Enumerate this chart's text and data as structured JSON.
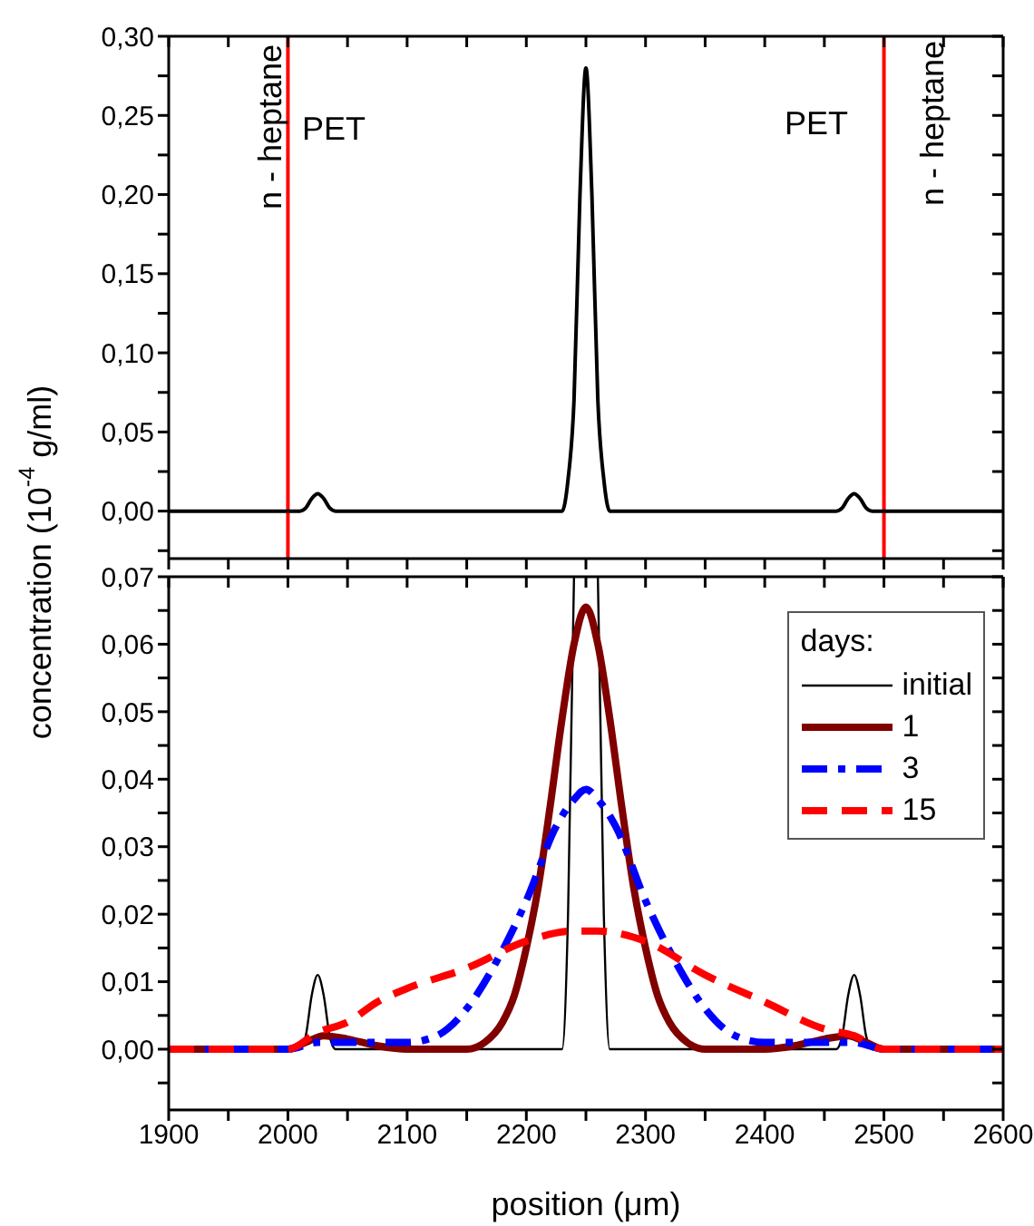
{
  "chart_data": [
    {
      "type": "line",
      "xlim": [
        1900,
        2600
      ],
      "xticks": [
        {
          "value": 1900,
          "label": null
        },
        {
          "value": 1950,
          "label": null
        },
        {
          "value": 2000,
          "label": null
        },
        {
          "value": 2050,
          "label": null
        },
        {
          "value": 2100,
          "label": null
        },
        {
          "value": 2150,
          "label": null
        },
        {
          "value": 2200,
          "label": null
        },
        {
          "value": 2250,
          "label": null
        },
        {
          "value": 2300,
          "label": null
        },
        {
          "value": 2350,
          "label": null
        },
        {
          "value": 2400,
          "label": null
        },
        {
          "value": 2450,
          "label": null
        },
        {
          "value": 2500,
          "label": null
        },
        {
          "value": 2550,
          "label": null
        },
        {
          "value": 2600,
          "label": null
        }
      ],
      "ylim": [
        -0.03,
        0.3
      ],
      "yticks": [
        {
          "value": -0.025,
          "label": null
        },
        {
          "value": 0,
          "label": "0,00"
        },
        {
          "value": 0.025,
          "label": null
        },
        {
          "value": 0.05,
          "label": "0,05"
        },
        {
          "value": 0.075,
          "label": null
        },
        {
          "value": 0.1,
          "label": "0,10"
        },
        {
          "value": 0.125,
          "label": null
        },
        {
          "value": 0.15,
          "label": "0,15"
        },
        {
          "value": 0.175,
          "label": null
        },
        {
          "value": 0.2,
          "label": "0,20"
        },
        {
          "value": 0.225,
          "label": null
        },
        {
          "value": 0.25,
          "label": "0,25"
        },
        {
          "value": 0.275,
          "label": null
        },
        {
          "value": 0.3,
          "label": "0,30"
        }
      ],
      "tick_labels": "y",
      "legend": false,
      "ylabel": "concentration (10$^{-4}$ g/ml)",
      "series": [
        {
          "color": "#000000",
          "line_style": "solid",
          "x": [
            1900,
            2010,
            2015,
            2020,
            2025,
            2030,
            2035,
            2040,
            2230,
            2235,
            2240,
            2245,
            2250,
            2255,
            2260,
            2265,
            2270,
            2460,
            2465,
            2470,
            2475,
            2480,
            2485,
            2490,
            2600
          ],
          "values": [
            0,
            0,
            0.002,
            0.008,
            0.011,
            0.008,
            0.002,
            0,
            0,
            0.02,
            0.07,
            0.2,
            0.28,
            0.2,
            0.07,
            0.02,
            0,
            0,
            0.002,
            0.008,
            0.011,
            0.008,
            0.002,
            0,
            0
          ]
        }
      ],
      "ref_lines": [
        {
          "axis": "x",
          "value": 2000,
          "color": "#ff0000"
        },
        {
          "axis": "x",
          "value": 2500,
          "color": "#ff0000"
        }
      ],
      "annotations": [
        "n - heptane",
        "PET",
        "PET",
        "n - heptane"
      ]
    },
    {
      "type": "line",
      "xlabel": "position (μm)",
      "xlim": [
        1900,
        2600
      ],
      "xticks": [
        1900,
        {
          "value": 1950,
          "label": null
        },
        2000,
        {
          "value": 2050,
          "label": null
        },
        2100,
        {
          "value": 2150,
          "label": null
        },
        2200,
        {
          "value": 2250,
          "label": null
        },
        2300,
        {
          "value": 2350,
          "label": null
        },
        2400,
        {
          "value": 2450,
          "label": null
        },
        2500,
        {
          "value": 2550,
          "label": null
        },
        2600
      ],
      "ylim": [
        -0.009,
        0.07
      ],
      "yticks": [
        {
          "value": -0.005,
          "label": null
        },
        {
          "value": 0,
          "label": "0,00"
        },
        {
          "value": 0.005,
          "label": null
        },
        {
          "value": 0.01,
          "label": "0,01"
        },
        {
          "value": 0.015,
          "label": null
        },
        {
          "value": 0.02,
          "label": "0,02"
        },
        {
          "value": 0.025,
          "label": null
        },
        {
          "value": 0.03,
          "label": "0,03"
        },
        {
          "value": 0.035,
          "label": null
        },
        {
          "value": 0.04,
          "label": "0,04"
        },
        {
          "value": 0.045,
          "label": null
        },
        {
          "value": 0.05,
          "label": "0,05"
        },
        {
          "value": 0.055,
          "label": null
        },
        {
          "value": 0.06,
          "label": "0,06"
        },
        {
          "value": 0.065,
          "label": null
        },
        {
          "value": 0.07,
          "label": "0,07"
        }
      ],
      "legend": "top right",
      "legend_title": "days:",
      "series": [
        {
          "name": "initial",
          "color": "#000000",
          "line_style": "solid",
          "x": [
            1900,
            2010,
            2015,
            2020,
            2025,
            2030,
            2035,
            2040,
            2230,
            2235,
            2240,
            2245,
            2250,
            2255,
            2260,
            2265,
            2270,
            2460,
            2465,
            2470,
            2475,
            2480,
            2485,
            2490,
            2600
          ],
          "values": [
            0,
            0,
            0.002,
            0.008,
            0.011,
            0.008,
            0.002,
            0,
            0,
            0.02,
            0.07,
            null,
            null,
            null,
            0.07,
            0.02,
            0,
            0,
            0.002,
            0.008,
            0.011,
            0.008,
            0.002,
            0,
            0
          ]
        },
        {
          "name": "1",
          "color": "#800000",
          "line_style": "solid",
          "x": [
            1900,
            2000,
            2015,
            2030,
            2050,
            2075,
            2100,
            2150,
            2165,
            2180,
            2190,
            2200,
            2210,
            2220,
            2230,
            2240,
            2250,
            2260,
            2270,
            2280,
            2290,
            2300,
            2310,
            2320,
            2335,
            2350,
            2400,
            2425,
            2450,
            2470,
            2485,
            2500,
            2600
          ],
          "values": [
            0,
            0,
            0.001,
            0.002,
            0.0015,
            0.0005,
            0,
            0,
            0.001,
            0.004,
            0.008,
            0.015,
            0.024,
            0.036,
            0.049,
            0.06,
            0.0655,
            0.06,
            0.049,
            0.036,
            0.024,
            0.015,
            0.008,
            0.004,
            0.001,
            0,
            0,
            0.0005,
            0.0015,
            0.002,
            0.001,
            0,
            0
          ]
        },
        {
          "name": "3",
          "color": "#0000ff",
          "line_style": "dashdot",
          "x": [
            1900,
            2000,
            2025,
            2050,
            2100,
            2125,
            2150,
            2175,
            2200,
            2225,
            2240,
            2250,
            2260,
            2275,
            2300,
            2325,
            2350,
            2375,
            2400,
            2450,
            2475,
            2500,
            2600
          ],
          "values": [
            0,
            0,
            0.001,
            0.001,
            0.001,
            0.002,
            0.006,
            0.013,
            0.022,
            0.033,
            0.037,
            0.0385,
            0.037,
            0.033,
            0.022,
            0.013,
            0.006,
            0.002,
            0.001,
            0.001,
            0.001,
            0,
            0
          ]
        },
        {
          "name": "15",
          "color": "#ff0000",
          "line_style": "dashed",
          "x": [
            1900,
            2000,
            2025,
            2050,
            2075,
            2100,
            2150,
            2200,
            2240,
            2260,
            2300,
            2350,
            2400,
            2450,
            2475,
            2500,
            2600
          ],
          "values": [
            0,
            0,
            0.0025,
            0.004,
            0.007,
            0.009,
            0.012,
            0.016,
            0.0175,
            0.0175,
            0.016,
            0.011,
            0.007,
            0.003,
            0.002,
            0,
            0
          ]
        }
      ]
    }
  ]
}
